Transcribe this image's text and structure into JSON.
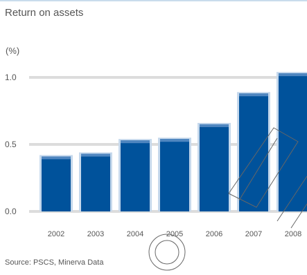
{
  "chart_data": {
    "type": "bar",
    "title": "Return on assets",
    "unit_label": "(%)",
    "categories": [
      "2002",
      "2003",
      "2004",
      "2005",
      "2006",
      "2007",
      "2008"
    ],
    "values": [
      0.41,
      0.43,
      0.53,
      0.54,
      0.65,
      0.88,
      1.03
    ],
    "ylim": [
      0,
      1.0
    ],
    "yticks": [
      "0.0",
      "0.5",
      "1.0"
    ],
    "grid": true,
    "source": "Source: PSCS, Minerva Data",
    "colors": {
      "bar": "#00529b",
      "bar_top": "#4f86c0",
      "bar_shadow": "#c5d8ec",
      "grid": "#dcdcdc"
    }
  }
}
